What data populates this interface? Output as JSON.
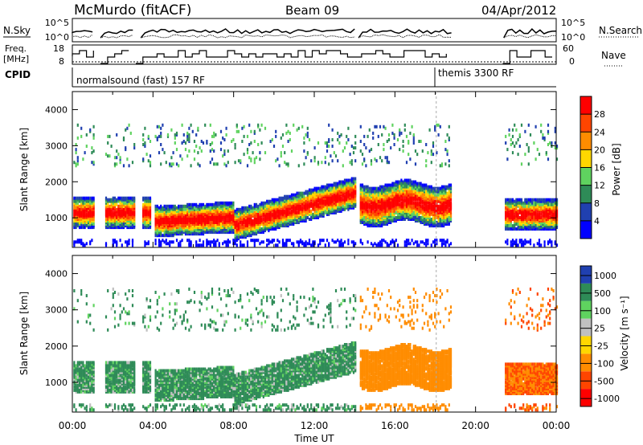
{
  "chart_data": [
    {
      "type": "line",
      "panel": "noise",
      "title": "McMurdo (fitACF)",
      "beam": "Beam 09",
      "date": "04/Apr/2012",
      "left_label": "N.Sky",
      "right_label": "N.Search",
      "left_ticks": [
        "10^5",
        "10^0"
      ],
      "right_ticks": [
        "10^5",
        "10^0"
      ]
    },
    {
      "type": "line",
      "panel": "freq",
      "left_label_line1": "Freq.",
      "left_label_line2": "[MHz]",
      "right_label": "Nave",
      "left_ticks": [
        "18",
        "8"
      ],
      "right_ticks": [
        "60",
        "0"
      ]
    },
    {
      "type": "table",
      "panel": "cpid",
      "label": "CPID",
      "segments": [
        {
          "label": "normalsound (fast) 157 RF",
          "start_hour": 0,
          "end_hour": 18.05
        },
        {
          "label": "themis 3300 RF",
          "start_hour": 18.05,
          "end_hour": 24
        }
      ]
    },
    {
      "type": "heatmap",
      "panel": "power",
      "ylabel": "Slant Range [km]",
      "ylim": [
        180,
        4500
      ],
      "yticks": [
        1000,
        2000,
        3000,
        4000
      ],
      "colorbar_label": "Power [dB]",
      "colorbar_ticks": [
        "4",
        "8",
        "12",
        "16",
        "20",
        "24",
        "28"
      ],
      "colors": [
        "#0000ff",
        "#2040b0",
        "#2e8b57",
        "#5fd35f",
        "#ffd700",
        "#ff8c00",
        "#ff4500",
        "#ff0000"
      ]
    },
    {
      "type": "heatmap",
      "panel": "velocity",
      "ylabel": "Slant Range [km]",
      "ylim": [
        180,
        4500
      ],
      "yticks": [
        1000,
        2000,
        3000,
        4000
      ],
      "xlabel": "Time UT",
      "xticks": [
        "00:00",
        "04:00",
        "08:00",
        "12:00",
        "16:00",
        "20:00",
        "00:00"
      ],
      "colorbar_label": "Velocity [m s⁻¹]",
      "colorbar_ticks": [
        "1000",
        "500",
        "100",
        "25",
        "-25",
        "-100",
        "-500",
        "-1000"
      ],
      "colors": [
        "#2040b0",
        "#2e8b57",
        "#5fd35f",
        "#c0c0c0",
        "#ffd700",
        "#ff8c00",
        "#ff4500",
        "#ff0000"
      ]
    }
  ]
}
